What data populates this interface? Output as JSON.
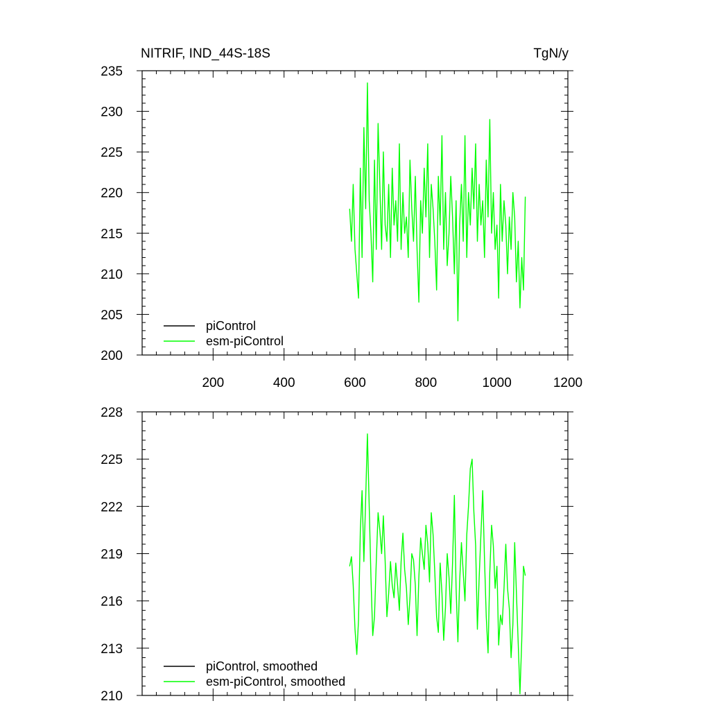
{
  "header": {
    "left_title": "NITRIF, IND_44S-18S",
    "right_title": "TgN/y"
  },
  "colors": {
    "piControl": "#000000",
    "esm_piControl": "#00ff00",
    "axes": "#000000",
    "background": "#ffffff"
  },
  "chart_data": [
    {
      "type": "line",
      "panel": "top",
      "title": "NITRIF, IND_44S-18S",
      "unit_label": "TgN/y",
      "xlim": [
        0,
        1200
      ],
      "ylim": [
        200,
        235
      ],
      "x_ticks": [
        200,
        400,
        600,
        800,
        1000,
        1200
      ],
      "x_tick_labels": [
        "200",
        "400",
        "600",
        "800",
        "1000",
        "1200"
      ],
      "y_ticks": [
        200,
        205,
        210,
        215,
        220,
        225,
        230,
        235
      ],
      "y_tick_labels": [
        "200",
        "205",
        "210",
        "215",
        "220",
        "225",
        "230",
        "235"
      ],
      "grid": false,
      "legend_position": "bottom-left",
      "legend": [
        "piControl",
        "esm-piControl"
      ],
      "series": [
        {
          "name": "piControl",
          "color": "#000000",
          "x": [],
          "y": []
        },
        {
          "name": "esm-piControl",
          "color": "#00ff00",
          "x": [
            585,
            590,
            595,
            600,
            605,
            610,
            615,
            620,
            625,
            630,
            635,
            640,
            645,
            650,
            655,
            660,
            665,
            670,
            675,
            680,
            685,
            690,
            695,
            700,
            705,
            710,
            715,
            720,
            725,
            730,
            735,
            740,
            745,
            750,
            755,
            760,
            765,
            770,
            775,
            780,
            785,
            790,
            795,
            800,
            805,
            810,
            815,
            820,
            825,
            830,
            835,
            840,
            845,
            850,
            855,
            860,
            865,
            870,
            875,
            880,
            885,
            890,
            895,
            900,
            905,
            910,
            915,
            920,
            925,
            930,
            935,
            940,
            945,
            950,
            955,
            960,
            965,
            970,
            975,
            980,
            985,
            990,
            995,
            1000,
            1005,
            1010,
            1015,
            1020,
            1025,
            1030,
            1035,
            1040,
            1045,
            1050,
            1055,
            1060,
            1065,
            1070,
            1075,
            1080
          ],
          "y": [
            218,
            214,
            221,
            213,
            210,
            207,
            223,
            212,
            228,
            218,
            233.5,
            219,
            215,
            209,
            224,
            213,
            228.5,
            221,
            213,
            225,
            216,
            214,
            221,
            212,
            223,
            216,
            219,
            214,
            226,
            213,
            220,
            215,
            217,
            212,
            224,
            218,
            214,
            222,
            213,
            206.5,
            219,
            215,
            223,
            217,
            226,
            212,
            221,
            218,
            214,
            208,
            222,
            216,
            227,
            213,
            220,
            211,
            215,
            222,
            217,
            210,
            219,
            204.2,
            216,
            221,
            214,
            227,
            212,
            220,
            216,
            223,
            218,
            226,
            214,
            221,
            216,
            219,
            212,
            224,
            217,
            229,
            215,
            220,
            213,
            216,
            207,
            221,
            214,
            219,
            216,
            210,
            217,
            213,
            220,
            217,
            209,
            214,
            205.8,
            212,
            208,
            219.5
          ]
        }
      ]
    },
    {
      "type": "line",
      "panel": "bottom",
      "xlim": [
        0,
        1200
      ],
      "ylim": [
        210,
        228
      ],
      "x_ticks": [
        200,
        400,
        600,
        800,
        1000,
        1200
      ],
      "y_ticks": [
        210,
        213,
        216,
        219,
        222,
        225,
        228
      ],
      "y_tick_labels": [
        "210",
        "213",
        "216",
        "219",
        "222",
        "225",
        "228"
      ],
      "grid": false,
      "legend_position": "bottom-left",
      "legend": [
        "piControl, smoothed",
        "esm-piControl, smoothed"
      ],
      "series": [
        {
          "name": "piControl, smoothed",
          "color": "#000000",
          "x": [],
          "y": []
        },
        {
          "name": "esm-piControl, smoothed",
          "color": "#00ff00",
          "x": [
            585,
            590,
            595,
            600,
            605,
            610,
            615,
            620,
            625,
            630,
            635,
            640,
            645,
            650,
            655,
            660,
            665,
            670,
            675,
            680,
            685,
            690,
            695,
            700,
            705,
            710,
            715,
            720,
            725,
            730,
            735,
            740,
            745,
            750,
            755,
            760,
            765,
            770,
            775,
            780,
            785,
            790,
            795,
            800,
            805,
            810,
            815,
            820,
            825,
            830,
            835,
            840,
            845,
            850,
            855,
            860,
            865,
            870,
            875,
            880,
            885,
            890,
            895,
            900,
            905,
            910,
            915,
            920,
            925,
            930,
            935,
            940,
            945,
            950,
            955,
            960,
            965,
            970,
            975,
            980,
            985,
            990,
            995,
            1000,
            1005,
            1010,
            1015,
            1020,
            1025,
            1030,
            1035,
            1040,
            1045,
            1050,
            1055,
            1060,
            1065,
            1070,
            1075,
            1080
          ],
          "y": [
            218.2,
            218.8,
            217,
            214.2,
            212.6,
            214.8,
            220.5,
            223,
            218.5,
            222.5,
            226.6,
            222,
            217.5,
            213.8,
            215,
            218.5,
            221.6,
            220.5,
            219,
            221.4,
            218.5,
            215,
            216.5,
            218.5,
            217,
            216.2,
            218.4,
            217,
            215.4,
            218.5,
            220.3,
            218,
            216.8,
            214.5,
            216.2,
            219,
            218.6,
            217,
            213.8,
            217.5,
            220,
            219,
            218,
            220.8,
            219.6,
            217.2,
            221.6,
            220.2,
            217.8,
            215,
            214,
            218.4,
            216.5,
            213.5,
            215.6,
            219,
            217.5,
            215.2,
            218.4,
            222.7,
            216.8,
            213.4,
            217.2,
            219.7,
            217.8,
            216,
            220.2,
            222,
            224.4,
            225,
            221.7,
            219.5,
            214.2,
            217.5,
            220.2,
            223,
            218.6,
            215,
            212.7,
            217.8,
            220.8,
            219.5,
            216.8,
            218.2,
            213.2,
            215.1,
            214.5,
            216.8,
            219.6,
            216.8,
            215.5,
            212.4,
            214.5,
            219.7,
            216.5,
            213.3,
            210.1,
            213.5,
            218.2,
            217.6
          ]
        }
      ]
    }
  ]
}
